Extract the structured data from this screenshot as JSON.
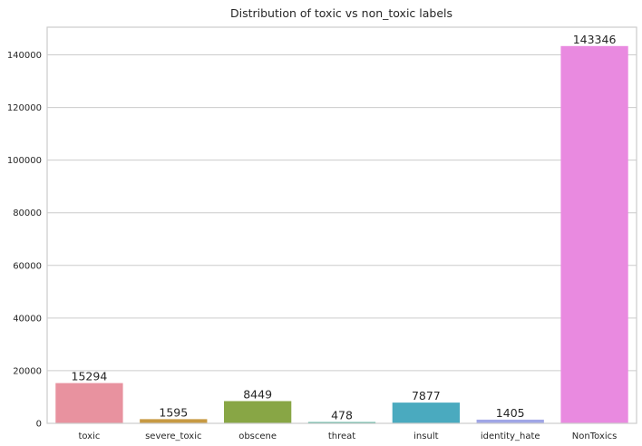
{
  "chart_data": {
    "type": "bar",
    "title": "Distribution of toxic vs non_toxic labels",
    "xlabel": "",
    "ylabel": "",
    "categories": [
      "toxic",
      "severe_toxic",
      "obscene",
      "threat",
      "insult",
      "identity_hate",
      "NonToxics"
    ],
    "values": [
      15294,
      1595,
      8449,
      478,
      7877,
      1405,
      143346
    ],
    "data_labels": [
      "15294",
      "1595",
      "8449",
      "478",
      "7877",
      "1405",
      "143346"
    ],
    "colors": [
      "#e8929f",
      "#c79a43",
      "#88a645",
      "#3faa92",
      "#4aaabf",
      "#a0a6e6",
      "#e98ae0"
    ],
    "ylim": [
      0,
      150511
    ],
    "yticks": [
      0,
      20000,
      40000,
      60000,
      80000,
      100000,
      120000,
      140000
    ],
    "ytick_labels": [
      "0",
      "20000",
      "40000",
      "60000",
      "80000",
      "100000",
      "120000",
      "140000"
    ],
    "grid": true,
    "legend": false
  }
}
